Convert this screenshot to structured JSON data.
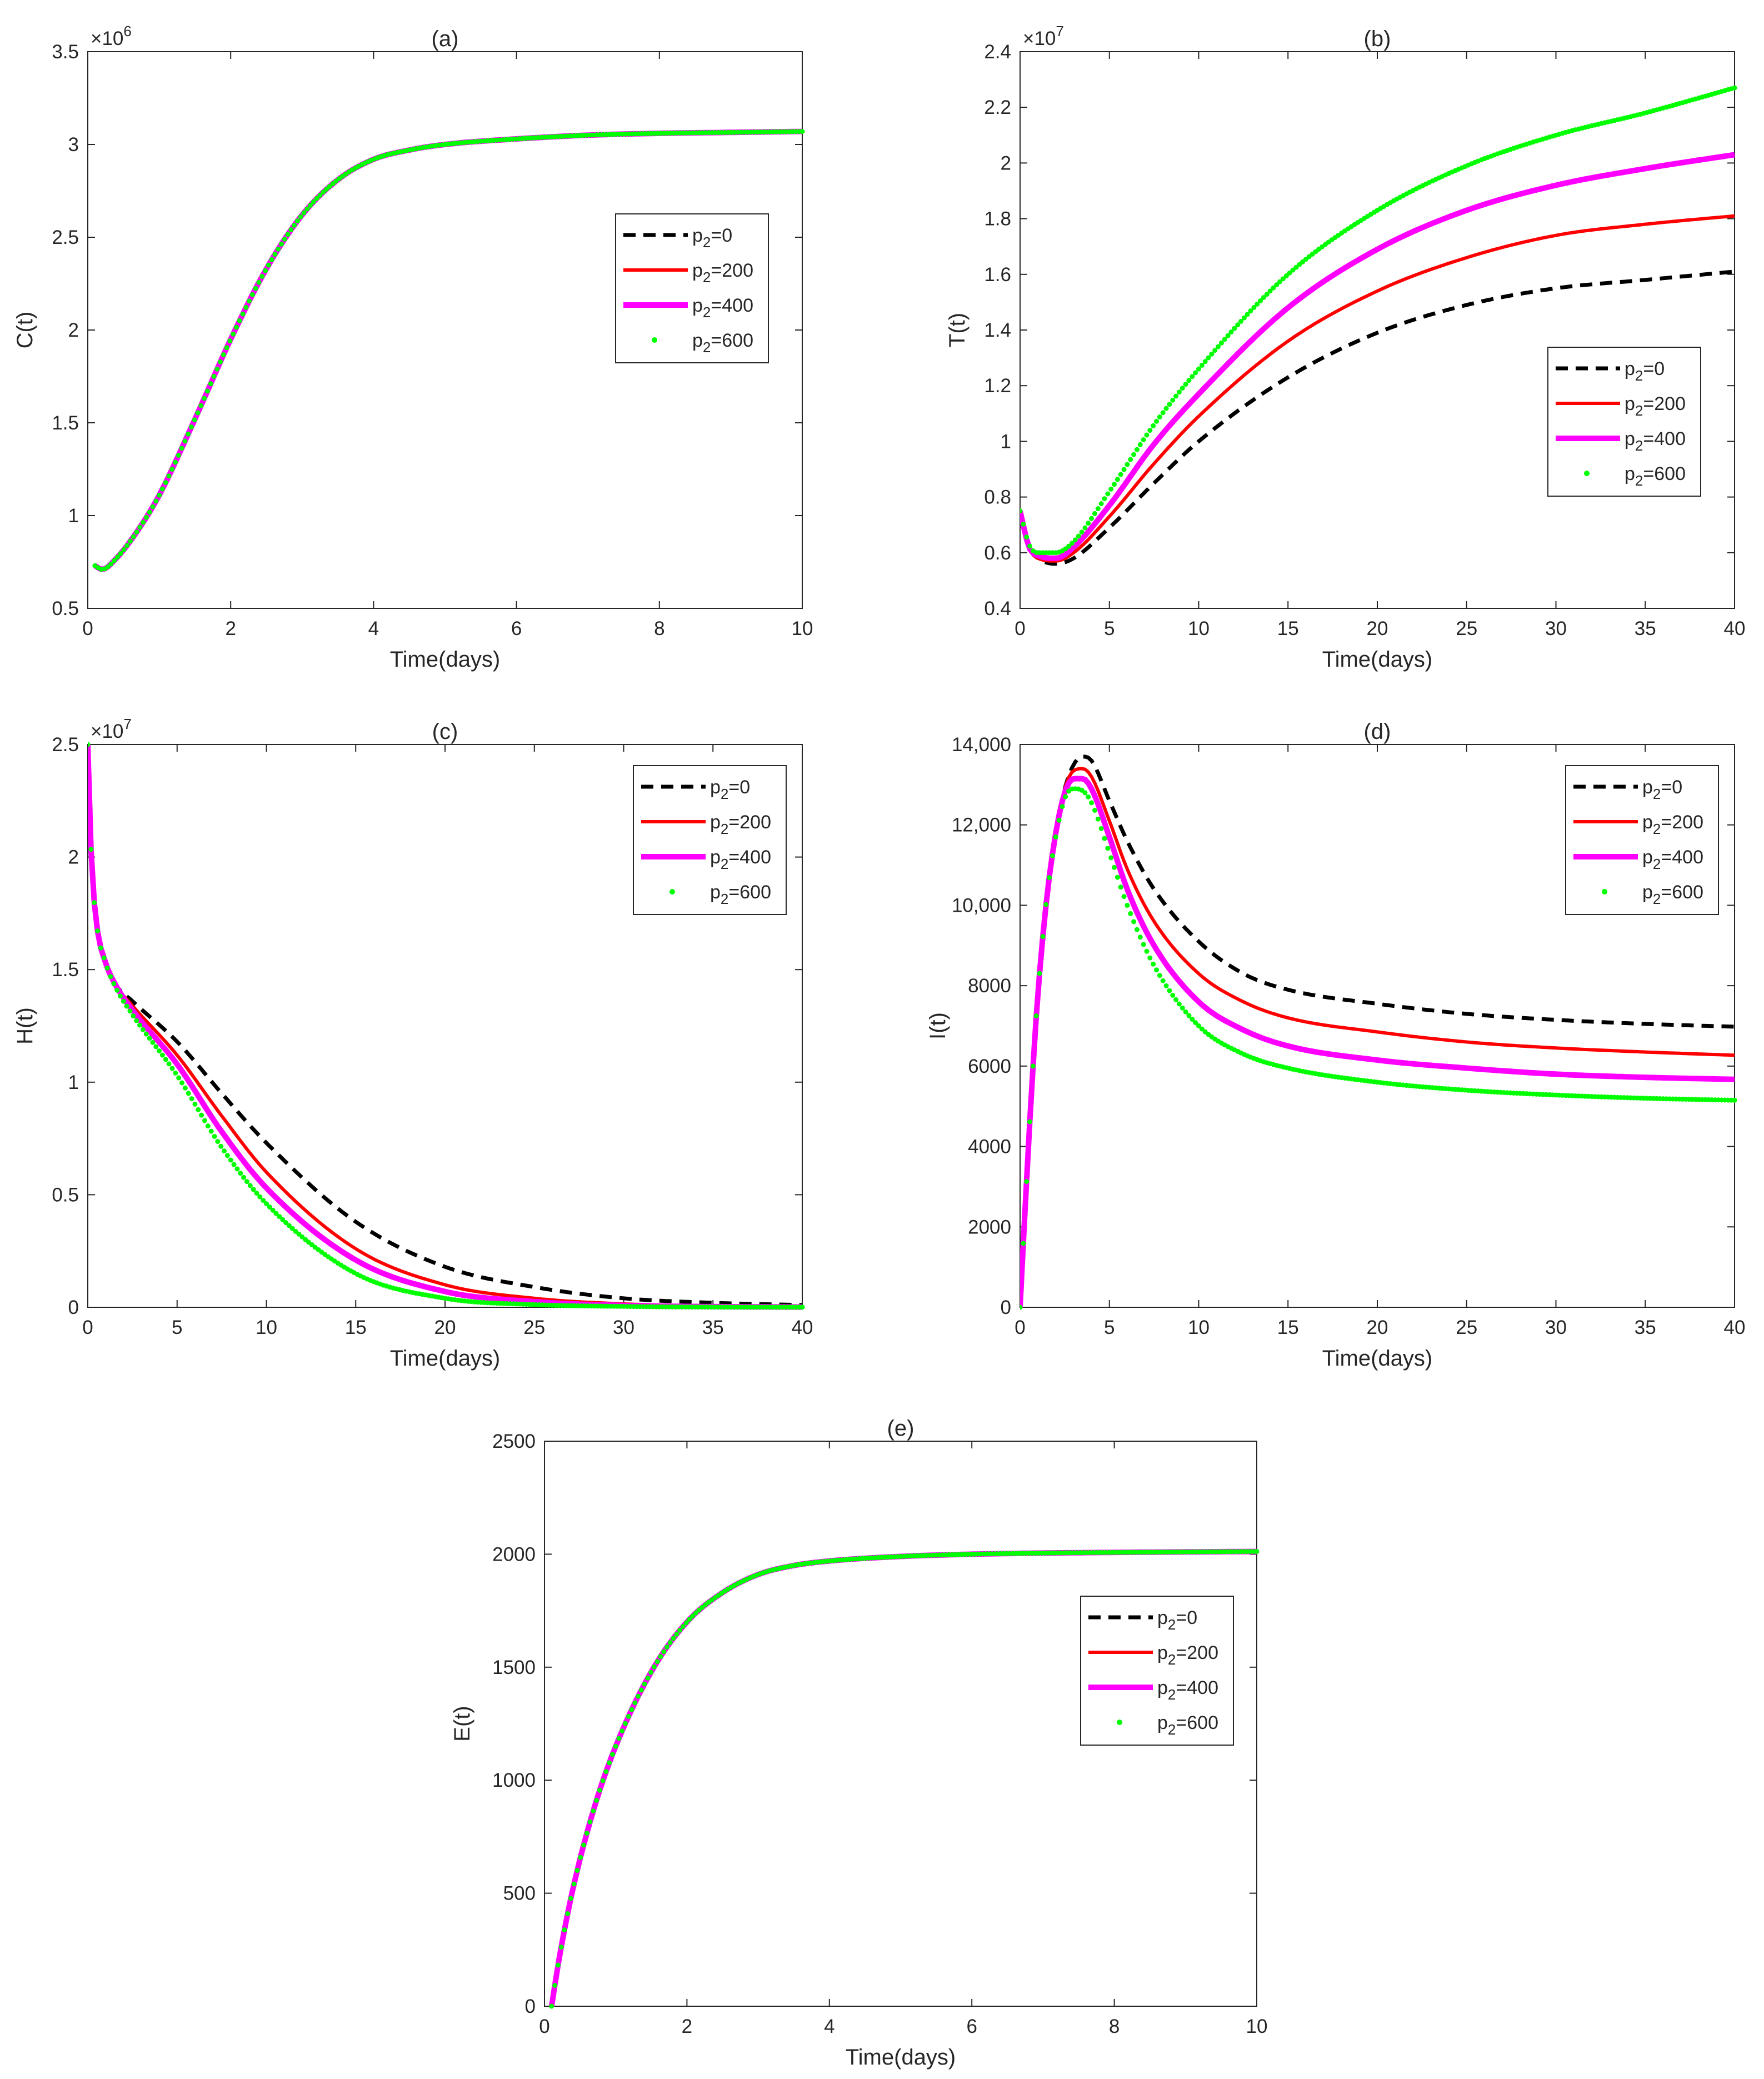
{
  "figure": {
    "legend_labels": [
      "p2=0",
      "p2=200",
      "p2=400",
      "p2=600"
    ],
    "series_colors": [
      "#000000",
      "#ff0000",
      "#ff00ff",
      "#00ff00"
    ]
  },
  "chart_data": [
    {
      "id": "a",
      "type": "line",
      "title": "(a)",
      "xlabel": "Time(days)",
      "ylabel": "C(t)",
      "xlim": [
        0,
        10
      ],
      "ylim": [
        500000,
        3500000
      ],
      "ymult": 1000000,
      "mult_base": "×10",
      "mult_exp": "6",
      "xticks": [
        0,
        2,
        4,
        6,
        8,
        10
      ],
      "xtick_labels": [
        "0",
        "2",
        "4",
        "6",
        "8",
        "10"
      ],
      "yticks": [
        500000,
        1000000,
        1500000,
        2000000,
        2500000,
        3000000,
        3500000
      ],
      "ytick_labels": [
        "0.5",
        "1",
        "1.5",
        "2",
        "2.5",
        "3",
        "3.5"
      ],
      "legend_position": "right",
      "series": [
        {
          "name": "p2=0",
          "x": [
            0.1,
            0.2,
            0.4,
            0.7,
            1,
            1.5,
            2,
            2.5,
            3,
            3.5,
            4,
            4.5,
            5,
            6,
            7,
            8,
            9,
            10
          ],
          "y": [
            730000,
            710000,
            770000,
            920000,
            1110000,
            1520000,
            1950000,
            2330000,
            2620000,
            2810000,
            2920000,
            2970000,
            3000000,
            3030000,
            3050000,
            3060000,
            3065000,
            3070000
          ]
        },
        {
          "name": "p2=200",
          "x": [
            0.1,
            0.2,
            0.4,
            0.7,
            1,
            1.5,
            2,
            2.5,
            3,
            3.5,
            4,
            4.5,
            5,
            6,
            7,
            8,
            9,
            10
          ],
          "y": [
            730000,
            710000,
            770000,
            920000,
            1110000,
            1520000,
            1950000,
            2330000,
            2620000,
            2810000,
            2920000,
            2970000,
            3000000,
            3030000,
            3050000,
            3060000,
            3065000,
            3070000
          ]
        },
        {
          "name": "p2=400",
          "x": [
            0.1,
            0.2,
            0.4,
            0.7,
            1,
            1.5,
            2,
            2.5,
            3,
            3.5,
            4,
            4.5,
            5,
            6,
            7,
            8,
            9,
            10
          ],
          "y": [
            730000,
            710000,
            770000,
            920000,
            1110000,
            1520000,
            1950000,
            2330000,
            2620000,
            2810000,
            2920000,
            2970000,
            3000000,
            3030000,
            3050000,
            3060000,
            3065000,
            3070000
          ]
        },
        {
          "name": "p2=600",
          "x": [
            0.1,
            0.2,
            0.4,
            0.7,
            1,
            1.5,
            2,
            2.5,
            3,
            3.5,
            4,
            4.5,
            5,
            6,
            7,
            8,
            9,
            10
          ],
          "y": [
            730000,
            710000,
            770000,
            920000,
            1110000,
            1520000,
            1950000,
            2330000,
            2620000,
            2810000,
            2920000,
            2970000,
            3000000,
            3030000,
            3050000,
            3060000,
            3065000,
            3070000
          ]
        }
      ]
    },
    {
      "id": "b",
      "type": "line",
      "title": "(b)",
      "xlabel": "Time(days)",
      "ylabel": "T(t)",
      "xlim": [
        0,
        40
      ],
      "ylim": [
        4000000,
        24000000
      ],
      "ymult": 10000000,
      "mult_base": "×10",
      "mult_exp": "7",
      "xticks": [
        0,
        5,
        10,
        15,
        20,
        25,
        30,
        35,
        40
      ],
      "xtick_labels": [
        "0",
        "5",
        "10",
        "15",
        "20",
        "25",
        "30",
        "35",
        "40"
      ],
      "yticks": [
        4000000,
        6000000,
        8000000,
        10000000,
        12000000,
        14000000,
        16000000,
        18000000,
        20000000,
        22000000,
        24000000
      ],
      "ytick_labels": [
        "0.4",
        "0.6",
        "0.8",
        "1",
        "1.2",
        "1.4",
        "1.6",
        "1.8",
        "2",
        "2.2",
        "2.4"
      ],
      "legend_position": "right",
      "series": [
        {
          "name": "p2=0",
          "x": [
            0,
            0.5,
            1,
            2,
            3,
            5,
            7.5,
            10,
            15,
            20,
            25,
            30,
            35,
            40
          ],
          "y": [
            7500000,
            6200000,
            5800000,
            5600000,
            5800000,
            6900000,
            8500000,
            10000000,
            12300000,
            13900000,
            14900000,
            15500000,
            15800000,
            16100000
          ]
        },
        {
          "name": "p2=200",
          "x": [
            0,
            0.5,
            1,
            2,
            3,
            5,
            7.5,
            10,
            15,
            20,
            25,
            30,
            35,
            40
          ],
          "y": [
            7500000,
            6200000,
            5800000,
            5700000,
            6000000,
            7300000,
            9200000,
            10900000,
            13600000,
            15400000,
            16600000,
            17400000,
            17800000,
            18100000
          ]
        },
        {
          "name": "p2=400",
          "x": [
            0,
            0.5,
            1,
            2,
            3,
            5,
            7.5,
            10,
            15,
            20,
            25,
            30,
            35,
            40
          ],
          "y": [
            7500000,
            6200000,
            5900000,
            5800000,
            6200000,
            7700000,
            9900000,
            11700000,
            14800000,
            16900000,
            18300000,
            19200000,
            19800000,
            20300000
          ]
        },
        {
          "name": "p2=600",
          "x": [
            0,
            0.5,
            1,
            2,
            3,
            5,
            7.5,
            10,
            15,
            20,
            25,
            30,
            35,
            40
          ],
          "y": [
            7500000,
            6300000,
            6000000,
            6000000,
            6400000,
            8200000,
            10600000,
            12600000,
            16000000,
            18300000,
            19900000,
            21000000,
            21800000,
            22700000
          ]
        }
      ]
    },
    {
      "id": "c",
      "type": "line",
      "title": "(c)",
      "xlabel": "Time(days)",
      "ylabel": "H(t)",
      "xlim": [
        0,
        40
      ],
      "ylim": [
        0,
        25000000
      ],
      "ymult": 10000000,
      "mult_base": "×10",
      "mult_exp": "7",
      "xticks": [
        0,
        5,
        10,
        15,
        20,
        25,
        30,
        35,
        40
      ],
      "xtick_labels": [
        "0",
        "5",
        "10",
        "15",
        "20",
        "25",
        "30",
        "35",
        "40"
      ],
      "yticks": [
        0,
        5000000,
        10000000,
        15000000,
        20000000,
        25000000
      ],
      "ytick_labels": [
        "0",
        "0.5",
        "1",
        "1.5",
        "2",
        "2.5"
      ],
      "legend_position": "top-right",
      "series": [
        {
          "name": "p2=0",
          "x": [
            0,
            0.2,
            0.5,
            1,
            1.5,
            2.5,
            5,
            7.5,
            10,
            15,
            20,
            25,
            30,
            35,
            40
          ],
          "y": [
            25000000,
            20000000,
            17000000,
            15300000,
            14400000,
            13600000,
            11800000,
            9500000,
            7300000,
            3800000,
            1800000,
            900000,
            400000,
            200000,
            100000
          ]
        },
        {
          "name": "p2=200",
          "x": [
            0,
            0.2,
            0.5,
            1,
            1.5,
            2.5,
            5,
            7.5,
            10,
            15,
            20,
            25,
            30,
            35,
            40
          ],
          "y": [
            25000000,
            20000000,
            17000000,
            15300000,
            14400000,
            13400000,
            11200000,
            8500000,
            6000000,
            2600000,
            1000000,
            400000,
            150000,
            60000,
            20000
          ]
        },
        {
          "name": "p2=400",
          "x": [
            0,
            0.2,
            0.5,
            1,
            1.5,
            2.5,
            5,
            7.5,
            10,
            15,
            20,
            25,
            30,
            35,
            40
          ],
          "y": [
            25000000,
            20000000,
            17000000,
            15300000,
            14400000,
            13200000,
            10800000,
            7800000,
            5300000,
            2100000,
            700000,
            250000,
            80000,
            30000,
            10000
          ]
        },
        {
          "name": "p2=600",
          "x": [
            0,
            0.2,
            0.5,
            1,
            1.5,
            2.5,
            5,
            7.5,
            10,
            15,
            20,
            25,
            30,
            35,
            40
          ],
          "y": [
            25000000,
            20000000,
            17000000,
            15300000,
            14300000,
            13000000,
            10300000,
            7100000,
            4600000,
            1500000,
            400000,
            120000,
            40000,
            10000,
            5000
          ]
        }
      ]
    },
    {
      "id": "d",
      "type": "line",
      "title": "(d)",
      "xlabel": "Time(days)",
      "ylabel": "I(t)",
      "xlim": [
        0,
        40
      ],
      "ylim": [
        0,
        14000
      ],
      "ymult": 1,
      "mult_base": "",
      "mult_exp": "",
      "xticks": [
        0,
        5,
        10,
        15,
        20,
        25,
        30,
        35,
        40
      ],
      "xtick_labels": [
        "0",
        "5",
        "10",
        "15",
        "20",
        "25",
        "30",
        "35",
        "40"
      ],
      "yticks": [
        0,
        2000,
        4000,
        6000,
        8000,
        10000,
        12000,
        14000
      ],
      "ytick_labels": [
        "0",
        "2000",
        "4000",
        "6000",
        "8000",
        "10,000",
        "12,000",
        "14,000"
      ],
      "legend_position": "top-right",
      "series": [
        {
          "name": "p2=0",
          "x": [
            0,
            0.3,
            0.7,
            1,
            1.5,
            2,
            2.5,
            3,
            3.5,
            4,
            5,
            6,
            7.5,
            10,
            12.5,
            15,
            20,
            25,
            30,
            35,
            40
          ],
          "y": [
            0,
            2600,
            5800,
            7800,
            10200,
            11800,
            12900,
            13500,
            13700,
            13600,
            12600,
            11600,
            10400,
            9100,
            8300,
            7900,
            7550,
            7300,
            7150,
            7050,
            6980
          ]
        },
        {
          "name": "p2=200",
          "x": [
            0,
            0.3,
            0.7,
            1,
            1.5,
            2,
            2.5,
            3,
            3.5,
            4,
            5,
            6,
            7.5,
            10,
            12.5,
            15,
            20,
            25,
            30,
            35,
            40
          ],
          "y": [
            0,
            2600,
            5800,
            7800,
            10200,
            11800,
            12900,
            13350,
            13400,
            13200,
            12100,
            10900,
            9600,
            8300,
            7600,
            7200,
            6850,
            6600,
            6450,
            6350,
            6270
          ]
        },
        {
          "name": "p2=400",
          "x": [
            0,
            0.3,
            0.7,
            1,
            1.5,
            2,
            2.5,
            3,
            3.5,
            4,
            5,
            6,
            7.5,
            10,
            12.5,
            15,
            20,
            25,
            30,
            35,
            40
          ],
          "y": [
            0,
            2600,
            5800,
            7800,
            10200,
            11800,
            12800,
            13150,
            13150,
            12900,
            11700,
            10400,
            9000,
            7600,
            6900,
            6500,
            6150,
            5950,
            5800,
            5720,
            5670
          ]
        },
        {
          "name": "p2=600",
          "x": [
            0,
            0.3,
            0.7,
            1,
            1.5,
            2,
            2.5,
            3,
            3.5,
            4,
            5,
            6,
            7.5,
            10,
            12.5,
            15,
            20,
            25,
            30,
            35,
            40
          ],
          "y": [
            0,
            2600,
            5800,
            7800,
            10200,
            11700,
            12650,
            12900,
            12850,
            12550,
            11300,
            10000,
            8500,
            7000,
            6300,
            5950,
            5600,
            5400,
            5280,
            5200,
            5150
          ]
        }
      ]
    },
    {
      "id": "e",
      "type": "line",
      "title": "(e)",
      "xlabel": "Time(days)",
      "ylabel": "E(t)",
      "xlim": [
        0,
        10
      ],
      "ylim": [
        0,
        2500
      ],
      "ymult": 1,
      "mult_base": "",
      "mult_exp": "",
      "xticks": [
        0,
        2,
        4,
        6,
        8,
        10
      ],
      "xtick_labels": [
        "0",
        "2",
        "4",
        "6",
        "8",
        "10"
      ],
      "yticks": [
        0,
        500,
        1000,
        1500,
        2000,
        2500
      ],
      "ytick_labels": [
        "0",
        "500",
        "1000",
        "1500",
        "2000",
        "2500"
      ],
      "legend_position": "right",
      "series": [
        {
          "name": "p2=0",
          "x": [
            0.1,
            0.2,
            0.4,
            0.7,
            1,
            1.5,
            2,
            2.5,
            3,
            3.5,
            4,
            5,
            6,
            7,
            8,
            9,
            10
          ],
          "y": [
            0,
            200,
            520,
            880,
            1150,
            1480,
            1700,
            1830,
            1910,
            1950,
            1970,
            1990,
            2000,
            2005,
            2008,
            2010,
            2012
          ]
        },
        {
          "name": "p2=200",
          "x": [
            0.1,
            0.2,
            0.4,
            0.7,
            1,
            1.5,
            2,
            2.5,
            3,
            3.5,
            4,
            5,
            6,
            7,
            8,
            9,
            10
          ],
          "y": [
            0,
            200,
            520,
            880,
            1150,
            1480,
            1700,
            1830,
            1910,
            1950,
            1970,
            1990,
            2000,
            2005,
            2008,
            2010,
            2012
          ]
        },
        {
          "name": "p2=400",
          "x": [
            0.1,
            0.2,
            0.4,
            0.7,
            1,
            1.5,
            2,
            2.5,
            3,
            3.5,
            4,
            5,
            6,
            7,
            8,
            9,
            10
          ],
          "y": [
            0,
            200,
            520,
            880,
            1150,
            1480,
            1700,
            1830,
            1910,
            1950,
            1970,
            1990,
            2000,
            2005,
            2008,
            2010,
            2012
          ]
        },
        {
          "name": "p2=600",
          "x": [
            0.1,
            0.2,
            0.4,
            0.7,
            1,
            1.5,
            2,
            2.5,
            3,
            3.5,
            4,
            5,
            6,
            7,
            8,
            9,
            10
          ],
          "y": [
            0,
            200,
            520,
            880,
            1150,
            1480,
            1700,
            1830,
            1910,
            1950,
            1970,
            1990,
            2000,
            2005,
            2008,
            2010,
            2012
          ]
        }
      ]
    }
  ]
}
